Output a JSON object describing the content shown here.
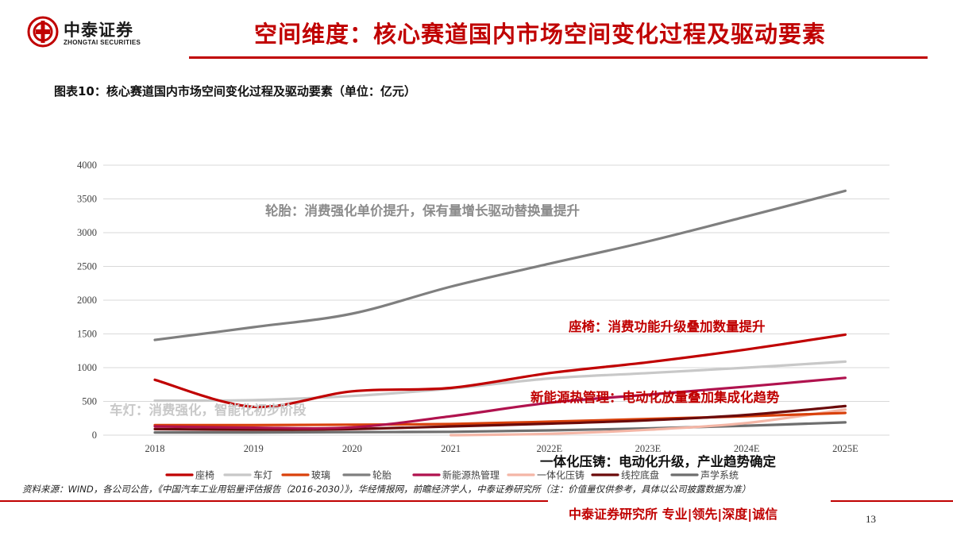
{
  "header": {
    "logo_cn": "中泰证券",
    "logo_en": "ZHONGTAI SECURITIES",
    "title": "空间维度：核心赛道国内市场空间变化过程及驱动要素"
  },
  "figure_caption": "图表10：核心赛道国内市场空间变化过程及驱动要素（单位：亿元）",
  "source_note": "资料来源：WIND，各公司公告，《中国汽车工业用铝量评估报告（2016-2030）》，华经情报网，前瞻经济学人，中泰证券研究所（注：价值量仅供参考，具体以公司披露数据为准）",
  "footer": {
    "slogan": "中泰证券研究所 专业|领先|深度|诚信",
    "page_number": "13"
  },
  "chart_data": {
    "type": "line",
    "categories": [
      "2018",
      "2019",
      "2020",
      "2021",
      "2022E",
      "2023E",
      "2024E",
      "2025E"
    ],
    "yticks": [
      "0",
      "500",
      "1000",
      "1500",
      "2000",
      "2500",
      "3000",
      "3500",
      "4000"
    ],
    "ylim": [
      0,
      4000
    ],
    "grid": true,
    "legend_position": "bottom",
    "series": [
      {
        "name": "座椅",
        "color": "#c00000",
        "values": [
          820,
          420,
          650,
          700,
          920,
          1080,
          1270,
          1490
        ]
      },
      {
        "name": "车灯",
        "color": "#c8c8c8",
        "values": [
          510,
          520,
          580,
          690,
          840,
          920,
          1000,
          1090
        ]
      },
      {
        "name": "玻璃",
        "color": "#d9410b",
        "values": [
          150,
          150,
          155,
          165,
          200,
          240,
          280,
          330
        ]
      },
      {
        "name": "轮胎",
        "color": "#7f7f7f",
        "values": [
          1410,
          1600,
          1800,
          2200,
          2540,
          2870,
          3240,
          3620
        ]
      },
      {
        "name": "新能源热管理",
        "color": "#b0124e",
        "values": [
          130,
          110,
          115,
          280,
          480,
          600,
          720,
          850
        ]
      },
      {
        "name": "一体化压铸",
        "color": "#f4b6a6",
        "values": [
          null,
          null,
          null,
          0,
          20,
          80,
          180,
          380
        ]
      },
      {
        "name": "线控底盘",
        "color": "#6b0a0a",
        "values": [
          90,
          80,
          90,
          130,
          170,
          220,
          300,
          430
        ]
      },
      {
        "name": "声学系统",
        "color": "#6e6e6e",
        "values": [
          40,
          40,
          45,
          50,
          70,
          100,
          140,
          190
        ]
      }
    ],
    "annotations": [
      {
        "text": "轮胎：消费强化单价提升，保有量增长驱动替换量提升",
        "color": "#8c8c8c"
      },
      {
        "text": "座椅：消费功能升级叠加数量提升",
        "color": "#c00000"
      },
      {
        "text": "新能源热管理：电动化放量叠加集成化趋势",
        "color": "#c00000"
      },
      {
        "text": "车灯：消费强化，智能化初步阶段",
        "color": "#c8c8c8"
      },
      {
        "text": "一体化压铸：电动化升级，产业趋势确定",
        "color": "#111111"
      }
    ]
  }
}
